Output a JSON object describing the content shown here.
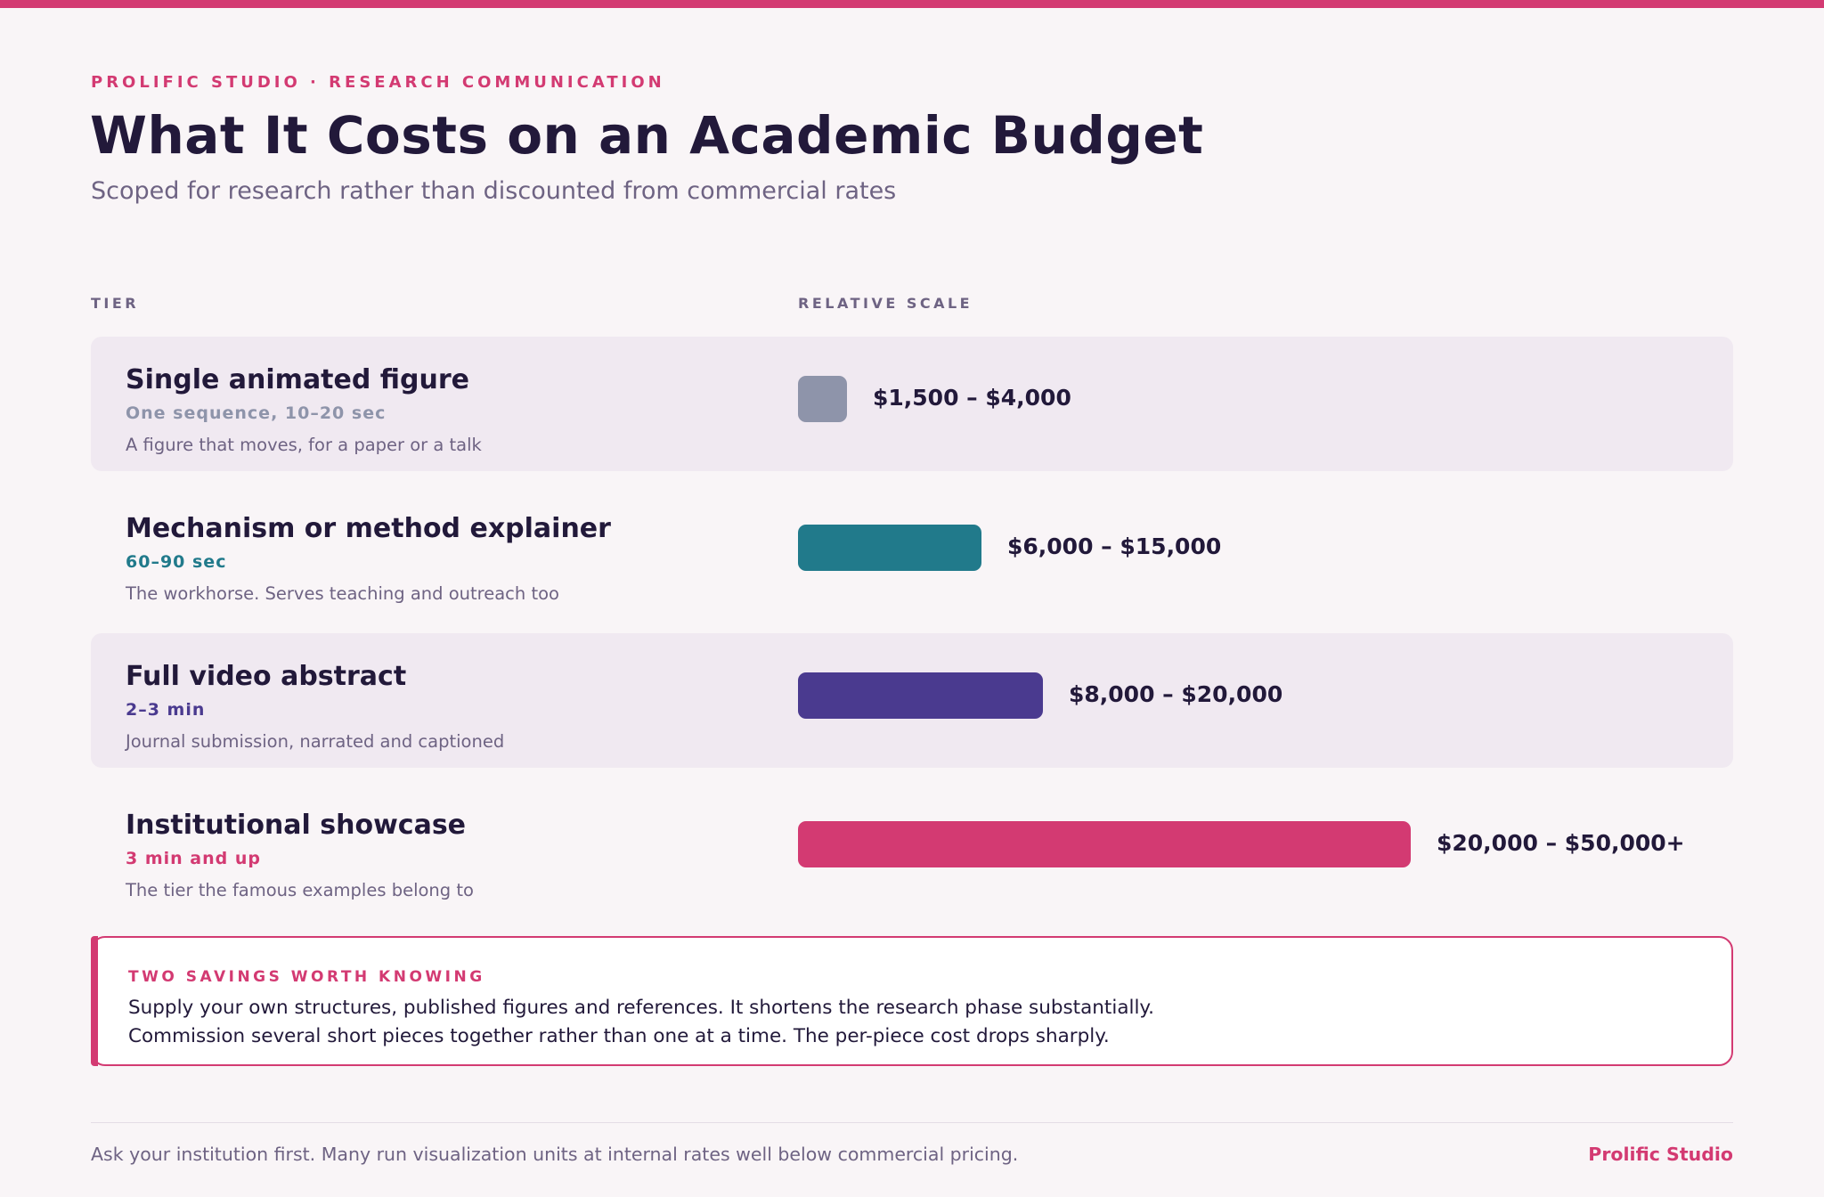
{
  "header": {
    "eyebrow": "PROLIFIC STUDIO · RESEARCH COMMUNICATION",
    "title": "What It Costs on an Academic Budget",
    "subtitle": "Scoped for research rather than discounted from commercial rates"
  },
  "columns": {
    "tier": "TIER",
    "scale": "RELATIVE SCALE"
  },
  "tiers": [
    {
      "name": "Single animated figure",
      "duration": "One sequence, 10–20 sec",
      "description": "A figure that moves, for a paper or a talk",
      "price": "$1,500 – $4,000",
      "relative_scale": 0.08,
      "color": "#8e94aa"
    },
    {
      "name": "Mechanism or method explainer",
      "duration": "60–90 sec",
      "description": "The workhorse. Serves teaching and outreach too",
      "price": "$6,000 – $15,000",
      "relative_scale": 0.3,
      "color": "#217a8b"
    },
    {
      "name": "Full video abstract",
      "duration": "2–3 min",
      "description": "Journal submission, narrated and captioned",
      "price": "$8,000 – $20,000",
      "relative_scale": 0.4,
      "color": "#4a3a8f"
    },
    {
      "name": "Institutional showcase",
      "duration": "3 min and up",
      "description": "The tier the famous examples belong to",
      "price": "$20,000 – $50,000+",
      "relative_scale": 1.0,
      "color": "#d33a72"
    }
  ],
  "callout": {
    "heading": "TWO SAVINGS WORTH KNOWING",
    "line1": "Supply your own structures, published figures and references. It shortens the research phase substantially.",
    "line2": "Commission several short pieces together rather than one at a time. The per-piece cost drops sharply."
  },
  "footer": {
    "note": "Ask your institution first. Many run visualization units at internal rates well below commercial pricing.",
    "brand": "Prolific Studio"
  },
  "colors": {
    "accent": "#d33a72",
    "text": "#22193a",
    "muted": "#6e6383",
    "background": "#f9f5f7",
    "row_shade": "#f0e9f1"
  }
}
